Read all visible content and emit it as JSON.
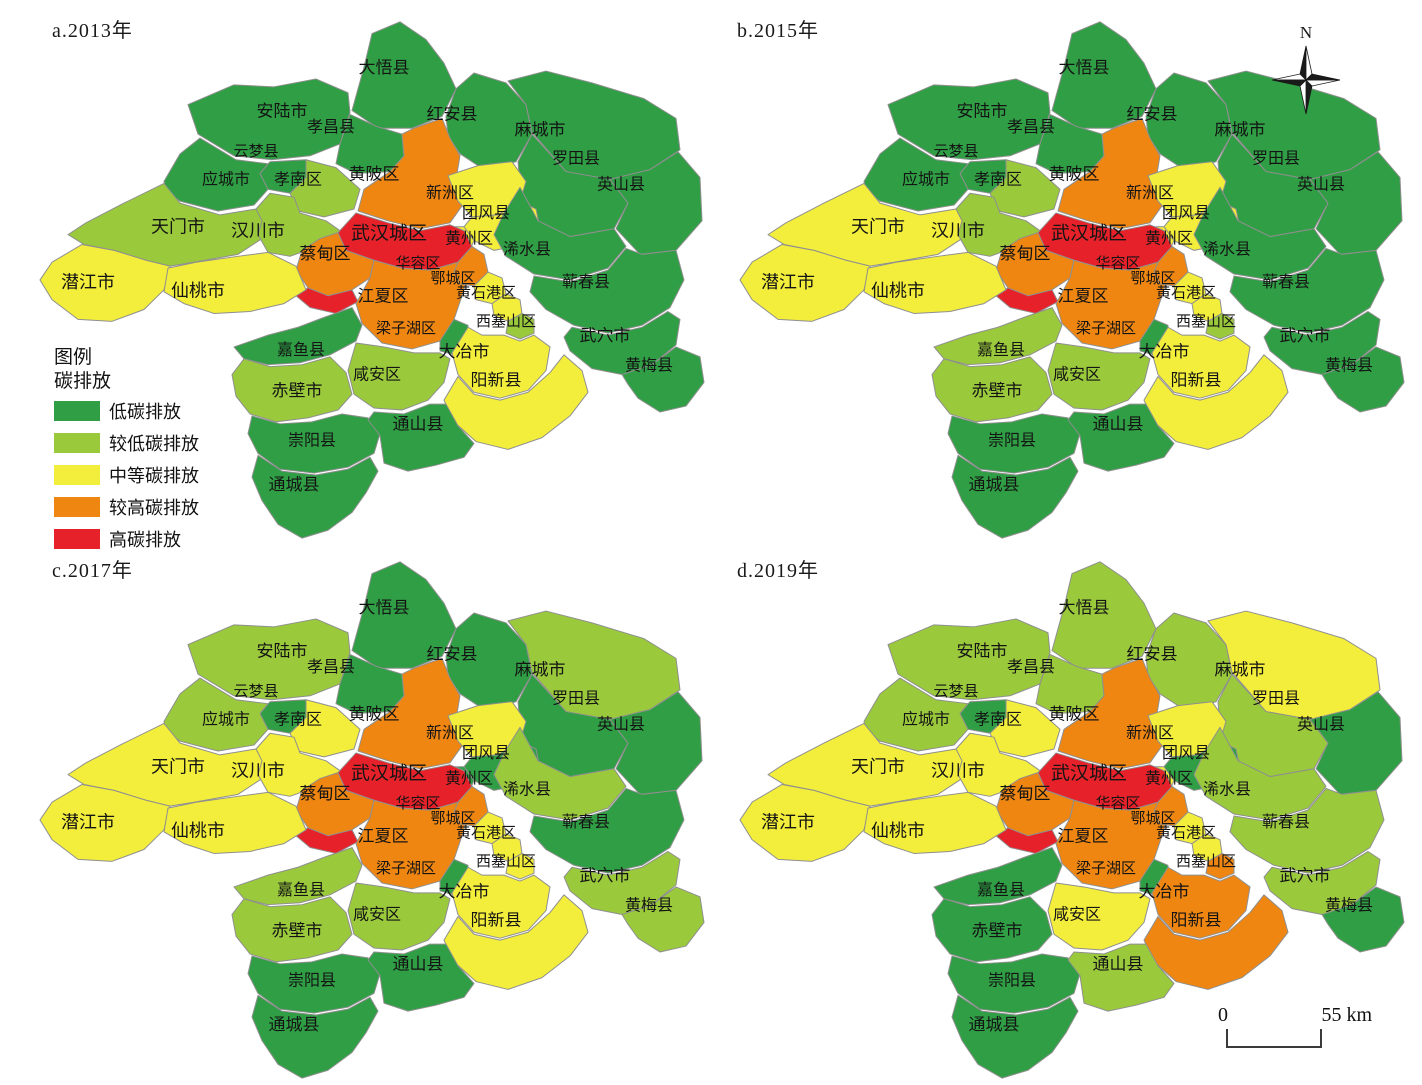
{
  "figure": {
    "panels": [
      {
        "id": "a",
        "title": "a.2013年",
        "year": "2013"
      },
      {
        "id": "b",
        "title": "b.2015年",
        "year": "2015"
      },
      {
        "id": "c",
        "title": "c.2017年",
        "year": "2017"
      },
      {
        "id": "d",
        "title": "d.2019年",
        "year": "2019"
      }
    ],
    "legend": {
      "title": "图例",
      "subtitle": "碳排放",
      "items": [
        {
          "label": "低碳排放",
          "color": "#2f9e44"
        },
        {
          "label": "较低碳排放",
          "color": "#9ac93c"
        },
        {
          "label": "中等碳排放",
          "color": "#f3ee3b"
        },
        {
          "label": "较高碳排放",
          "color": "#ef8612"
        },
        {
          "label": "高碳排放",
          "color": "#e62129"
        }
      ]
    },
    "compass": {
      "label": "N"
    },
    "scale_bar": {
      "start_label": "0",
      "end_label": "55 km"
    }
  },
  "regions": [
    {
      "id": "dawu",
      "label": "大悟县"
    },
    {
      "id": "anlu",
      "label": "安陆市"
    },
    {
      "id": "xiaochang",
      "label": "孝昌县"
    },
    {
      "id": "hongan",
      "label": "红安县"
    },
    {
      "id": "macheng",
      "label": "麻城市"
    },
    {
      "id": "luotian",
      "label": "罗田县"
    },
    {
      "id": "yingshan",
      "label": "英山县"
    },
    {
      "id": "yunmeng",
      "label": "云梦县"
    },
    {
      "id": "yingcheng",
      "label": "应城市"
    },
    {
      "id": "xiaonan",
      "label": "孝南区"
    },
    {
      "id": "huangpi",
      "label": "黄陂区"
    },
    {
      "id": "xinzhou",
      "label": "新洲区"
    },
    {
      "id": "tuanfeng",
      "label": "团风县"
    },
    {
      "id": "huangzhou",
      "label": "黄州区"
    },
    {
      "id": "xishui",
      "label": "浠水县"
    },
    {
      "id": "tianmen",
      "label": "天门市"
    },
    {
      "id": "hanchuan",
      "label": "汉川市"
    },
    {
      "id": "wuhan",
      "label": "武汉城区"
    },
    {
      "id": "caidian",
      "label": "蔡甸区"
    },
    {
      "id": "qianjiang",
      "label": "潜江市"
    },
    {
      "id": "xiantao",
      "label": "仙桃市"
    },
    {
      "id": "jiangxia",
      "label": "江夏区"
    },
    {
      "id": "huarong",
      "label": "华容区"
    },
    {
      "id": "echeng",
      "label": "鄂城区"
    },
    {
      "id": "huangshigang",
      "label": "黄石港区"
    },
    {
      "id": "xisaishan",
      "label": "西塞山区"
    },
    {
      "id": "liangzihu",
      "label": "梁子湖区"
    },
    {
      "id": "qichun",
      "label": "蕲春县"
    },
    {
      "id": "wuxue",
      "label": "武穴市"
    },
    {
      "id": "huangmei",
      "label": "黄梅县"
    },
    {
      "id": "daye",
      "label": "大冶市"
    },
    {
      "id": "yangxin",
      "label": "阳新县"
    },
    {
      "id": "jiayu",
      "label": "嘉鱼县"
    },
    {
      "id": "xianan",
      "label": "咸安区"
    },
    {
      "id": "chibi",
      "label": "赤壁市"
    },
    {
      "id": "chongyang",
      "label": "崇阳县"
    },
    {
      "id": "tongshan",
      "label": "通山县"
    },
    {
      "id": "tongcheng",
      "label": "通城县"
    }
  ],
  "category_names": [
    "低碳排放",
    "较低碳排放",
    "中等碳排放",
    "较高碳排放",
    "高碳排放"
  ],
  "values": {
    "2013": {
      "dawu": 1,
      "anlu": 1,
      "xiaochang": 1,
      "hongan": 1,
      "macheng": 1,
      "luotian": 1,
      "yingshan": 1,
      "yunmeng": 1,
      "yingcheng": 1,
      "xiaonan": 2,
      "huangpi": 4,
      "xinzhou": 3,
      "tuanfeng": 3,
      "huangzhou": 3,
      "xishui": 1,
      "tianmen": 2,
      "hanchuan": 2,
      "wuhan": 5,
      "caidian": 4,
      "qianjiang": 3,
      "xiantao": 3,
      "jiangxia": 4,
      "huarong": 4,
      "echeng": 3,
      "huangshigang": 3,
      "xisaishan": 2,
      "liangzihu": 1,
      "qichun": 1,
      "wuxue": 1,
      "huangmei": 1,
      "daye": 3,
      "yangxin": 3,
      "jiayu": 1,
      "xianan": 2,
      "chibi": 2,
      "chongyang": 1,
      "tongshan": 1,
      "tongcheng": 1
    },
    "2015": {
      "dawu": 1,
      "anlu": 1,
      "xiaochang": 1,
      "hongan": 1,
      "macheng": 1,
      "luotian": 1,
      "yingshan": 1,
      "yunmeng": 1,
      "yingcheng": 1,
      "xiaonan": 2,
      "huangpi": 4,
      "xinzhou": 3,
      "tuanfeng": 3,
      "huangzhou": 3,
      "xishui": 1,
      "tianmen": 3,
      "hanchuan": 2,
      "wuhan": 5,
      "caidian": 4,
      "qianjiang": 3,
      "xiantao": 3,
      "jiangxia": 4,
      "huarong": 4,
      "echeng": 3,
      "huangshigang": 3,
      "xisaishan": 2,
      "liangzihu": 1,
      "qichun": 1,
      "wuxue": 1,
      "huangmei": 1,
      "daye": 3,
      "yangxin": 3,
      "jiayu": 2,
      "xianan": 2,
      "chibi": 2,
      "chongyang": 1,
      "tongshan": 1,
      "tongcheng": 1
    },
    "2017": {
      "dawu": 1,
      "anlu": 2,
      "xiaochang": 1,
      "hongan": 1,
      "macheng": 2,
      "luotian": 1,
      "yingshan": 1,
      "yunmeng": 1,
      "yingcheng": 2,
      "xiaonan": 3,
      "huangpi": 4,
      "xinzhou": 3,
      "tuanfeng": 1,
      "huangzhou": 1,
      "xishui": 2,
      "tianmen": 3,
      "hanchuan": 3,
      "wuhan": 5,
      "caidian": 4,
      "qianjiang": 3,
      "xiantao": 3,
      "jiangxia": 4,
      "huarong": 4,
      "echeng": 3,
      "huangshigang": 3,
      "xisaishan": 3,
      "liangzihu": 1,
      "qichun": 1,
      "wuxue": 2,
      "huangmei": 2,
      "daye": 3,
      "yangxin": 3,
      "jiayu": 2,
      "xianan": 2,
      "chibi": 2,
      "chongyang": 1,
      "tongshan": 1,
      "tongcheng": 1
    },
    "2019": {
      "dawu": 2,
      "anlu": 2,
      "xiaochang": 2,
      "hongan": 2,
      "macheng": 3,
      "luotian": 2,
      "yingshan": 1,
      "yunmeng": 1,
      "yingcheng": 2,
      "xiaonan": 3,
      "huangpi": 4,
      "xinzhou": 3,
      "tuanfeng": 1,
      "huangzhou": 3,
      "xishui": 2,
      "tianmen": 3,
      "hanchuan": 3,
      "wuhan": 5,
      "caidian": 4,
      "qianjiang": 3,
      "xiantao": 3,
      "jiangxia": 4,
      "huarong": 4,
      "echeng": 3,
      "huangshigang": 3,
      "xisaishan": 4,
      "liangzihu": 1,
      "qichun": 2,
      "wuxue": 2,
      "huangmei": 1,
      "daye": 4,
      "yangxin": 4,
      "jiayu": 1,
      "xianan": 3,
      "chibi": 1,
      "chongyang": 1,
      "tongshan": 2,
      "tongcheng": 1
    }
  },
  "border_color": "#8f8f8f"
}
